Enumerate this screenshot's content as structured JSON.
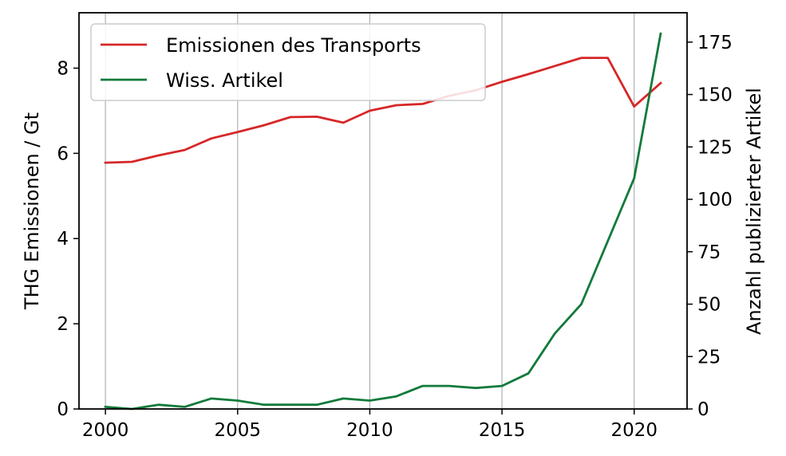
{
  "chart_data": {
    "type": "line",
    "title": "",
    "xlabel": "",
    "ylabel": "THG Emissionen / Gt",
    "y2label": "Anzahl publizierter Artikel",
    "xlim": [
      1999,
      2022
    ],
    "ylim": [
      0,
      9.3
    ],
    "y2lim": [
      0,
      189
    ],
    "xticks": [
      2000,
      2005,
      2010,
      2015,
      2020
    ],
    "yticks": [
      0,
      2,
      4,
      6,
      8
    ],
    "y2ticks": [
      0,
      25,
      50,
      75,
      100,
      125,
      150,
      175
    ],
    "grid": "vertical",
    "legend": "top-left",
    "x": [
      2000,
      2001,
      2002,
      2003,
      2004,
      2005,
      2006,
      2007,
      2008,
      2009,
      2010,
      2011,
      2012,
      2013,
      2014,
      2015,
      2016,
      2017,
      2018,
      2019,
      2020,
      2021
    ],
    "series": [
      {
        "name": "Emissionen des Transports",
        "axis": "left",
        "color": "#d62728",
        "values": [
          5.78,
          5.8,
          5.95,
          6.08,
          6.35,
          6.5,
          6.66,
          6.85,
          6.86,
          6.72,
          7.0,
          7.13,
          7.16,
          7.35,
          7.48,
          7.68,
          7.86,
          8.05,
          8.24,
          8.24,
          7.1,
          7.65
        ]
      },
      {
        "name": "Wiss. Artikel",
        "axis": "right",
        "color": "#127a3b",
        "values": [
          1,
          0,
          2,
          1,
          5,
          4,
          2,
          2,
          2,
          5,
          4,
          6,
          11,
          11,
          10,
          11,
          17,
          36,
          50,
          80,
          110,
          179
        ]
      }
    ]
  }
}
